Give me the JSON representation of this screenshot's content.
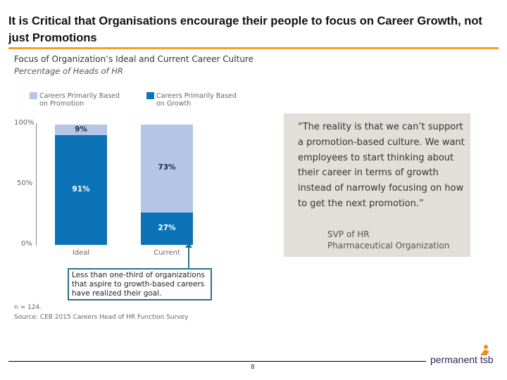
{
  "slide": {
    "title": "It is Critical that Organisations encourage their people to focus on Career Growth, not just Promotions",
    "page_number": "8",
    "logo_text": "permanent tsb",
    "accent_color": "#f4a21e"
  },
  "chart_data": {
    "type": "bar",
    "stacked": true,
    "title": "Focus of Organization’s Ideal and Current Career Culture",
    "subtitle": "Percentage of Heads of HR",
    "categories": [
      "Ideal",
      "Current"
    ],
    "series": [
      {
        "name": "Careers Primarily Based on Growth",
        "values": [
          91,
          27
        ],
        "color": "#0c73b6"
      },
      {
        "name": "Careers Primarily Based on Promotion",
        "values": [
          9,
          73
        ],
        "color": "#b4c6e6"
      }
    ],
    "legend_lines": {
      "promotion": [
        "Careers Primarily Based",
        "on Promotion"
      ],
      "growth": [
        "Careers Primarily Based",
        "on Growth"
      ]
    },
    "ylim": [
      0,
      100
    ],
    "yticks": [
      "0%",
      "50%",
      "100%"
    ],
    "legend": "top",
    "grid": false,
    "data_labels": {
      "Ideal": [
        "91%",
        "9%"
      ],
      "Current": [
        "27%",
        "73%"
      ]
    }
  },
  "callout": "Less than one-third of organizations that aspire to growth-based careers have realized their goal.",
  "notes": {
    "n": "n = 124.",
    "source": "Source: CEB 2015 Careers Head of HR Function Survey"
  },
  "quote": {
    "text": "“The reality is that we can’t support a promotion-based culture. We want employees to start thinking about their career in terms of growth instead of narrowly focusing on how to get the next promotion.”",
    "attr1": "SVP of HR",
    "attr2": "Pharmaceutical Organization"
  }
}
